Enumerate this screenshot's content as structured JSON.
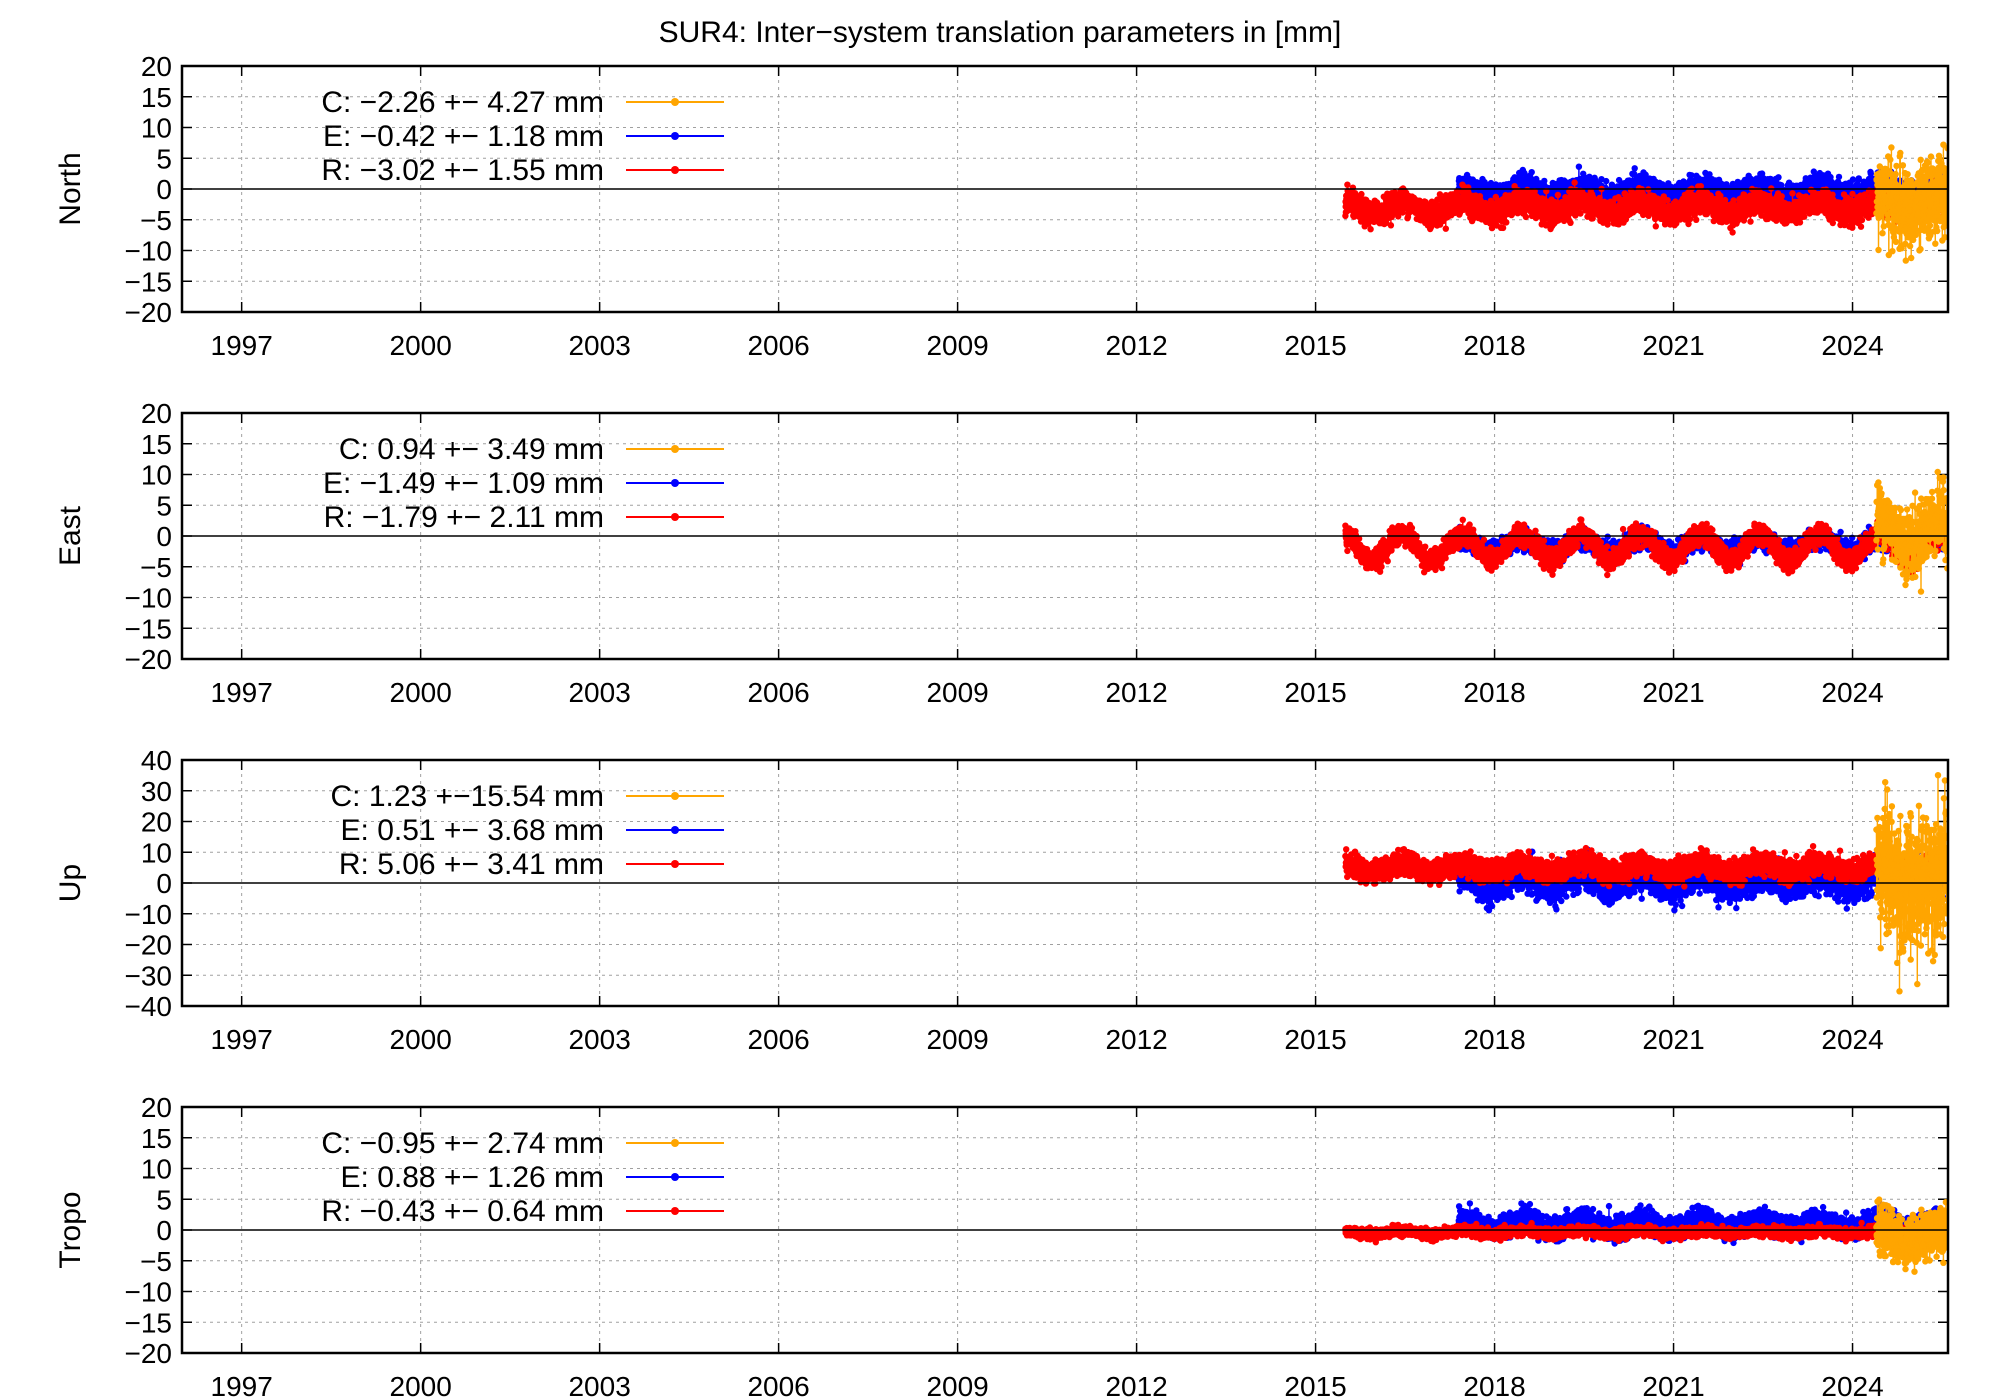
{
  "chart_data": {
    "type": "scatter",
    "title": "SUR4: Inter−system translation parameters in [mm]",
    "x_ticks": [
      "1997",
      "2000",
      "2003",
      "2006",
      "2009",
      "2012",
      "2015",
      "2018",
      "2021",
      "2024"
    ],
    "xlim": [
      1996,
      2025.6
    ],
    "grid": true,
    "legend_placement": "top-left",
    "series_colors": {
      "C": "#ffa500",
      "E": "#0000ff",
      "R": "#ff0000"
    },
    "panels": [
      {
        "ylabel": "North",
        "ylim": [
          -20,
          20
        ],
        "y_ticks": [
          "20",
          "15",
          "10",
          "5",
          "0",
          "−5",
          "−10",
          "−15",
          "−20"
        ],
        "legend": [
          {
            "key": "C",
            "text": "C:  −2.26 +− 4.27 mm"
          },
          {
            "key": "E",
            "text": "E:  −0.42 +− 1.18 mm"
          },
          {
            "key": "R",
            "text": "R:  −3.02 +− 1.55 mm"
          }
        ],
        "series": [
          {
            "key": "E",
            "start": 2017.4,
            "end": 2025.6,
            "center": -0.4,
            "spread": 1.8,
            "seasonal": 0.8
          },
          {
            "key": "R",
            "start": 2015.5,
            "end": 2025.6,
            "center": -3.0,
            "spread": 1.8,
            "seasonal": 1.0
          },
          {
            "key": "C",
            "start": 2024.4,
            "end": 2025.6,
            "center": -2.3,
            "spread": 6.0,
            "seasonal": 1.5
          }
        ]
      },
      {
        "ylabel": "East",
        "ylim": [
          -20,
          20
        ],
        "y_ticks": [
          "20",
          "15",
          "10",
          "5",
          "0",
          "−5",
          "−10",
          "−15",
          "−20"
        ],
        "legend": [
          {
            "key": "C",
            "text": "C:   0.94 +− 3.49 mm"
          },
          {
            "key": "E",
            "text": "E:  −1.49 +− 1.09 mm"
          },
          {
            "key": "R",
            "text": "R:  −1.79 +− 2.11 mm"
          }
        ],
        "series": [
          {
            "key": "E",
            "start": 2017.4,
            "end": 2025.6,
            "center": -1.5,
            "spread": 1.4,
            "seasonal": 1.0
          },
          {
            "key": "R",
            "start": 2015.5,
            "end": 2025.6,
            "center": -1.8,
            "spread": 1.5,
            "seasonal": 2.2
          },
          {
            "key": "C",
            "start": 2024.4,
            "end": 2025.6,
            "center": 0.9,
            "spread": 5.0,
            "seasonal": 2.0
          }
        ]
      },
      {
        "ylabel": "Up",
        "ylim": [
          -40,
          40
        ],
        "y_ticks": [
          "40",
          "30",
          "20",
          "10",
          "0",
          "−10",
          "−20",
          "−30",
          "−40"
        ],
        "legend": [
          {
            "key": "C",
            "text": "C:   1.23 +−15.54 mm"
          },
          {
            "key": "E",
            "text": "E:   0.51 +− 3.68 mm"
          },
          {
            "key": "R",
            "text": "R:   5.06 +− 3.41 mm"
          }
        ],
        "series": [
          {
            "key": "E",
            "start": 2017.4,
            "end": 2025.6,
            "center": 0.5,
            "spread": 4.5,
            "seasonal": 2.0
          },
          {
            "key": "R",
            "start": 2015.5,
            "end": 2025.6,
            "center": 5.0,
            "spread": 3.2,
            "seasonal": 1.5
          },
          {
            "key": "C",
            "start": 2024.4,
            "end": 2025.6,
            "center": 1.2,
            "spread": 20.0,
            "seasonal": 4.0
          }
        ]
      },
      {
        "ylabel": "Tropo",
        "ylim": [
          -20,
          20
        ],
        "y_ticks": [
          "20",
          "15",
          "10",
          "5",
          "0",
          "−5",
          "−10",
          "−15",
          "−20"
        ],
        "legend": [
          {
            "key": "C",
            "text": "C:  −0.95 +− 2.74 mm"
          },
          {
            "key": "E",
            "text": "E:   0.88 +− 1.26 mm"
          },
          {
            "key": "R",
            "text": "R:  −0.43 +− 0.64 mm"
          }
        ],
        "series": [
          {
            "key": "E",
            "start": 2017.4,
            "end": 2025.6,
            "center": 0.9,
            "spread": 1.6,
            "seasonal": 0.8
          },
          {
            "key": "R",
            "start": 2015.5,
            "end": 2025.6,
            "center": -0.4,
            "spread": 0.7,
            "seasonal": 0.3
          },
          {
            "key": "C",
            "start": 2024.4,
            "end": 2025.6,
            "center": -1.0,
            "spread": 3.5,
            "seasonal": 1.0
          }
        ]
      }
    ]
  }
}
